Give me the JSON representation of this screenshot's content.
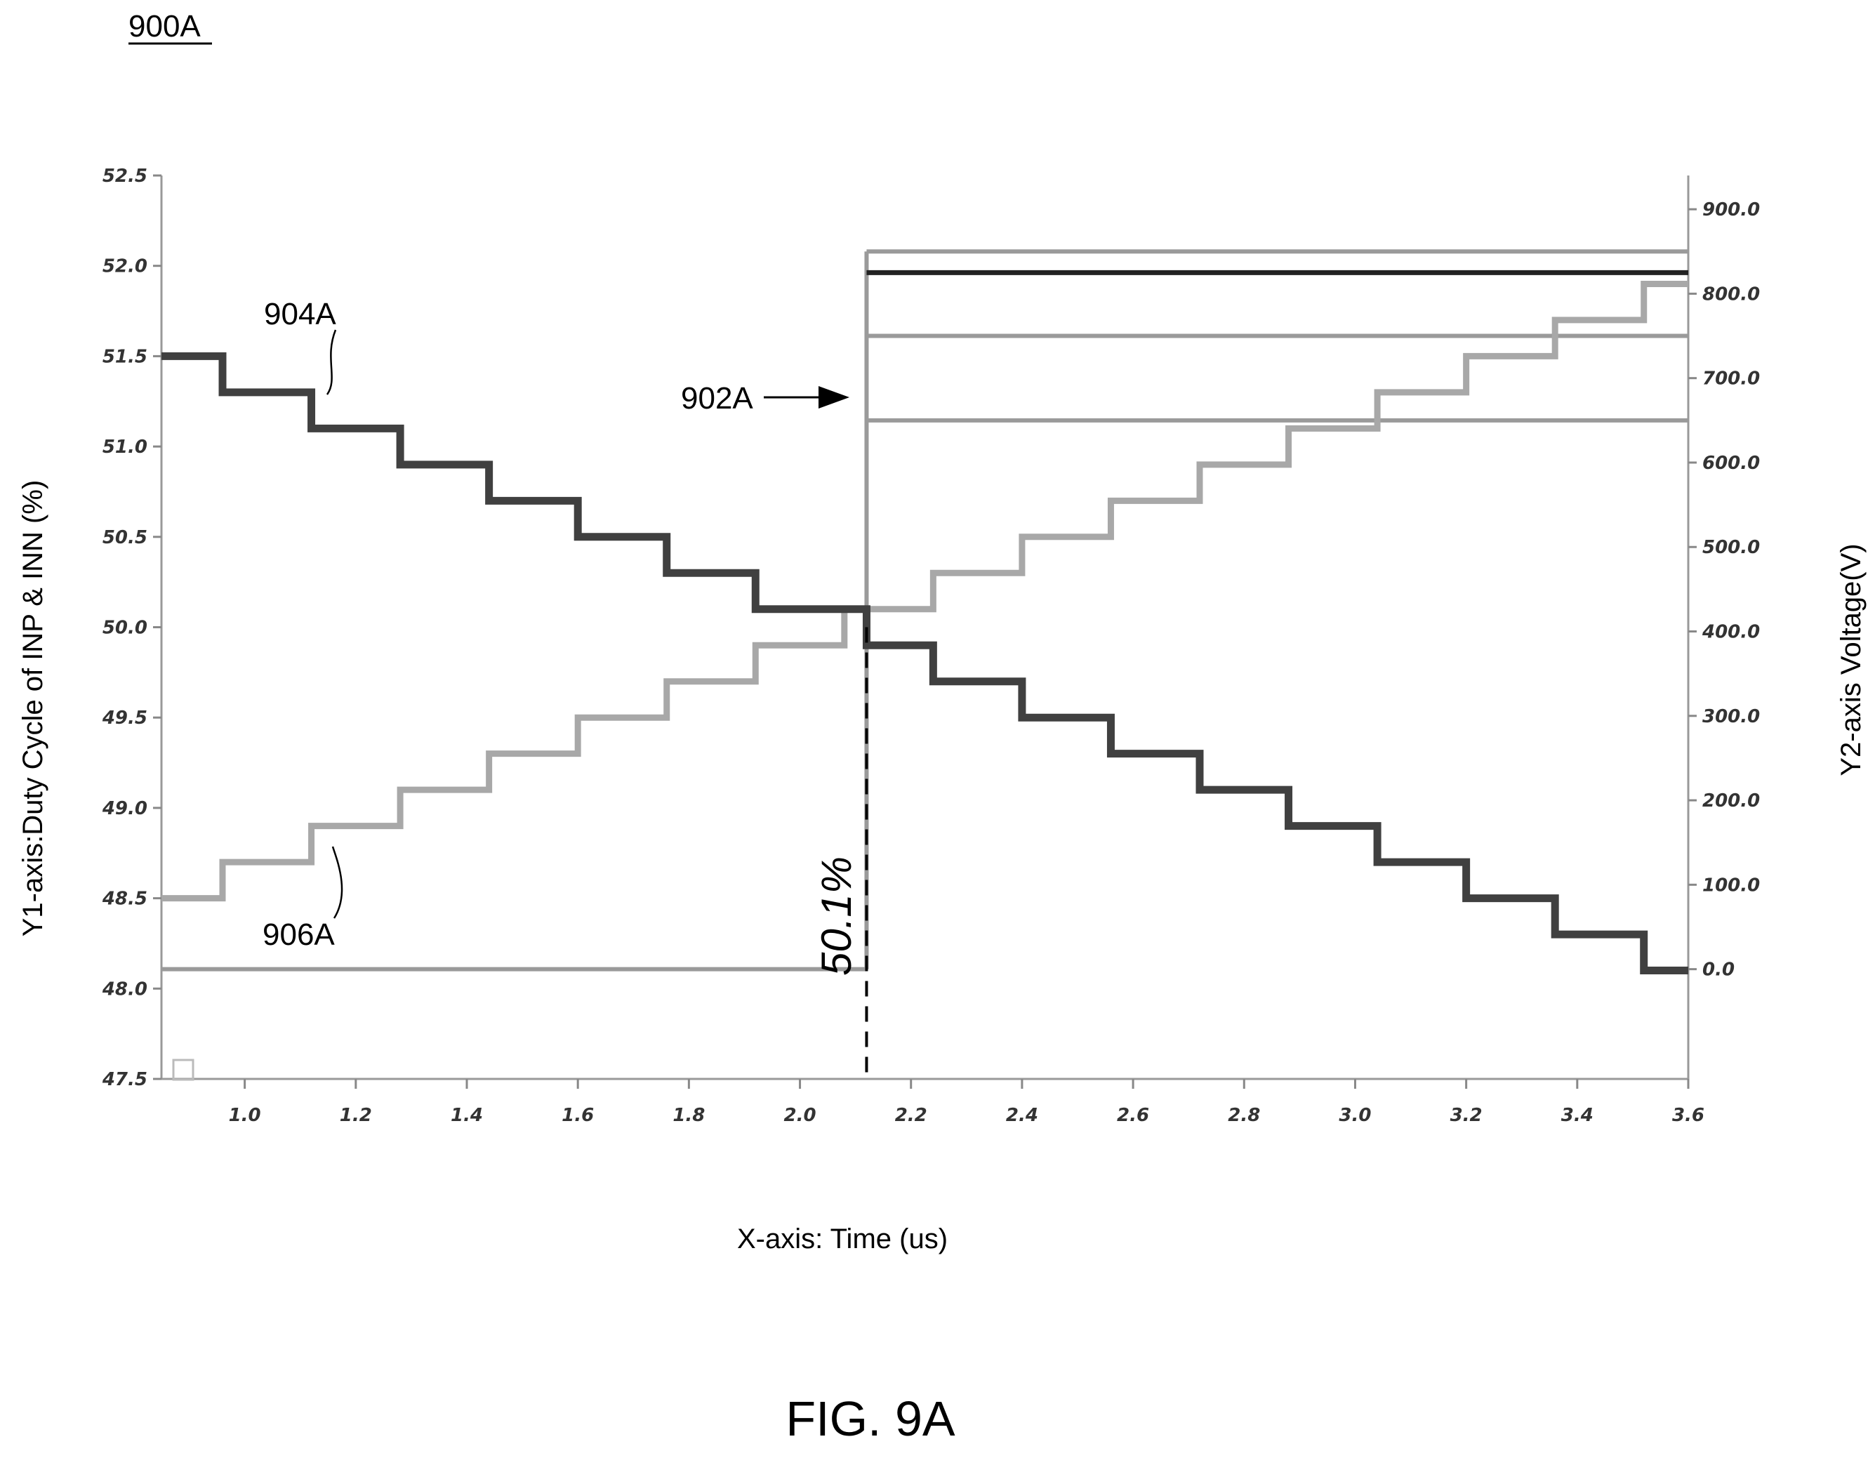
{
  "figure_ref": "900A",
  "caption": "FIG. 9A",
  "chart_data": {
    "type": "line",
    "xlabel": "X-axis: Time (us)",
    "ylabel": "Y1-axis:Duty Cycle of INP & INN  (%)",
    "y2label": "Y2-axis Voltage(V)",
    "xlim": [
      0.85,
      3.6
    ],
    "ylim": [
      47.5,
      52.5
    ],
    "y2lim": [
      -130,
      940
    ],
    "x_ticks": [
      "1.0",
      "1.2",
      "1.4",
      "1.6",
      "1.8",
      "2.0",
      "2.2",
      "2.4",
      "2.6",
      "2.8",
      "3.0",
      "3.2",
      "3.4",
      "3.6"
    ],
    "y_ticks": [
      "47.5",
      "48.0",
      "48.5",
      "49.0",
      "49.5",
      "50.0",
      "50.5",
      "51.0",
      "51.5",
      "52.0",
      "52.5"
    ],
    "y2_ticks": [
      "0.0",
      "100.0",
      "200.0",
      "300.0",
      "400.0",
      "500.0",
      "600.0",
      "700.0",
      "800.0",
      "900.0"
    ],
    "grid": false,
    "series": [
      {
        "name": "904A",
        "axis": "y1",
        "color": "#404040",
        "step_x": [
          0.85,
          0.96,
          1.12,
          1.28,
          1.44,
          1.6,
          1.76,
          1.92,
          2.08,
          2.12,
          2.24,
          2.4,
          2.56,
          2.72,
          2.88,
          3.04,
          3.2,
          3.36,
          3.52,
          3.6
        ],
        "step_y": [
          51.5,
          51.3,
          51.1,
          50.9,
          50.7,
          50.5,
          50.3,
          50.1,
          50.1,
          49.9,
          49.7,
          49.5,
          49.3,
          49.1,
          48.9,
          48.7,
          48.5,
          48.3,
          48.1,
          48.1
        ]
      },
      {
        "name": "906A",
        "axis": "y1",
        "color": "#a8a8a8",
        "step_x": [
          0.85,
          0.96,
          1.12,
          1.28,
          1.44,
          1.6,
          1.76,
          1.92,
          2.08,
          2.12,
          2.24,
          2.4,
          2.56,
          2.72,
          2.88,
          3.04,
          3.2,
          3.36,
          3.52,
          3.6
        ],
        "step_y": [
          48.5,
          48.7,
          48.9,
          49.1,
          49.3,
          49.5,
          49.7,
          49.9,
          50.1,
          50.1,
          50.3,
          50.5,
          50.7,
          50.9,
          51.1,
          51.3,
          51.5,
          51.7,
          51.9,
          51.9
        ]
      },
      {
        "name": "902A",
        "axis": "y2",
        "color": "#9a9a9a",
        "transition_x": 2.12,
        "level_before": 0,
        "levels_after": [
          650,
          750,
          850
        ],
        "level_after_dark": 825
      }
    ],
    "marker": {
      "x": 2.12,
      "label": "50.1%"
    },
    "annotations": [
      {
        "text": "904A"
      },
      {
        "text": "906A"
      },
      {
        "text": "902A"
      }
    ]
  }
}
